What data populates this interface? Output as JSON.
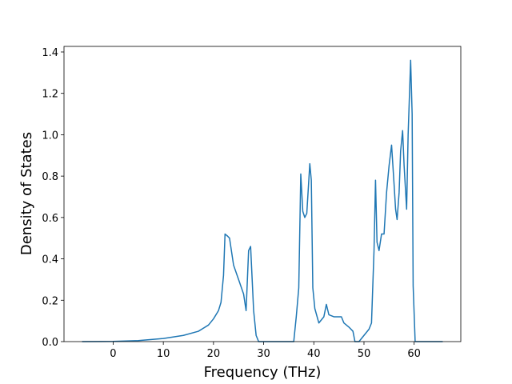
{
  "chart_data": {
    "type": "line",
    "xlabel": "Frequency (THz)",
    "ylabel": "Density of States",
    "x": [
      -6.2,
      0,
      5,
      10,
      14,
      17,
      19,
      20,
      21,
      21.5,
      22,
      22.3,
      22.8,
      23.2,
      24,
      25,
      26,
      26.5,
      27,
      27.4,
      28,
      28.5,
      29,
      36,
      36.5,
      37,
      37.4,
      37.8,
      38.2,
      38.6,
      39.2,
      39.5,
      39.8,
      40.2,
      41,
      42,
      42.5,
      43,
      44,
      45,
      45.5,
      46,
      47,
      47.8,
      48.2,
      49,
      50,
      51,
      51.5,
      52,
      52.3,
      52.6,
      53,
      53.5,
      54,
      54.5,
      55,
      55.5,
      56,
      56.3,
      56.6,
      57,
      57.3,
      57.7,
      58,
      58.5,
      58.8,
      59.3,
      59.6,
      59.8,
      60.2,
      65.7
    ],
    "series": [
      {
        "color": "#1f77b4",
        "values": [
          0,
          0.001,
          0.005,
          0.015,
          0.03,
          0.05,
          0.08,
          0.11,
          0.15,
          0.19,
          0.32,
          0.52,
          0.51,
          0.5,
          0.37,
          0.3,
          0.23,
          0.15,
          0.44,
          0.46,
          0.15,
          0.03,
          0,
          0,
          0.12,
          0.26,
          0.81,
          0.63,
          0.6,
          0.62,
          0.86,
          0.78,
          0.26,
          0.16,
          0.09,
          0.12,
          0.18,
          0.13,
          0.12,
          0.12,
          0.12,
          0.09,
          0.07,
          0.05,
          0,
          0,
          0.03,
          0.06,
          0.09,
          0.44,
          0.78,
          0.48,
          0.44,
          0.52,
          0.52,
          0.72,
          0.85,
          0.95,
          0.76,
          0.64,
          0.59,
          0.72,
          0.92,
          1.02,
          0.85,
          0.64,
          1.0,
          1.36,
          1.1,
          0.27,
          0,
          0
        ]
      }
    ],
    "xlim": [
      -9.8,
      69.3
    ],
    "xticks": [
      0,
      10,
      20,
      30,
      40,
      50,
      60
    ],
    "ylim": [
      0,
      1.427
    ],
    "yticks": [
      {
        "value": 0,
        "label": "0.0"
      },
      0.2,
      0.4,
      0.6,
      0.8,
      {
        "value": 1,
        "label": "1.0"
      },
      1.2,
      1.4
    ]
  }
}
